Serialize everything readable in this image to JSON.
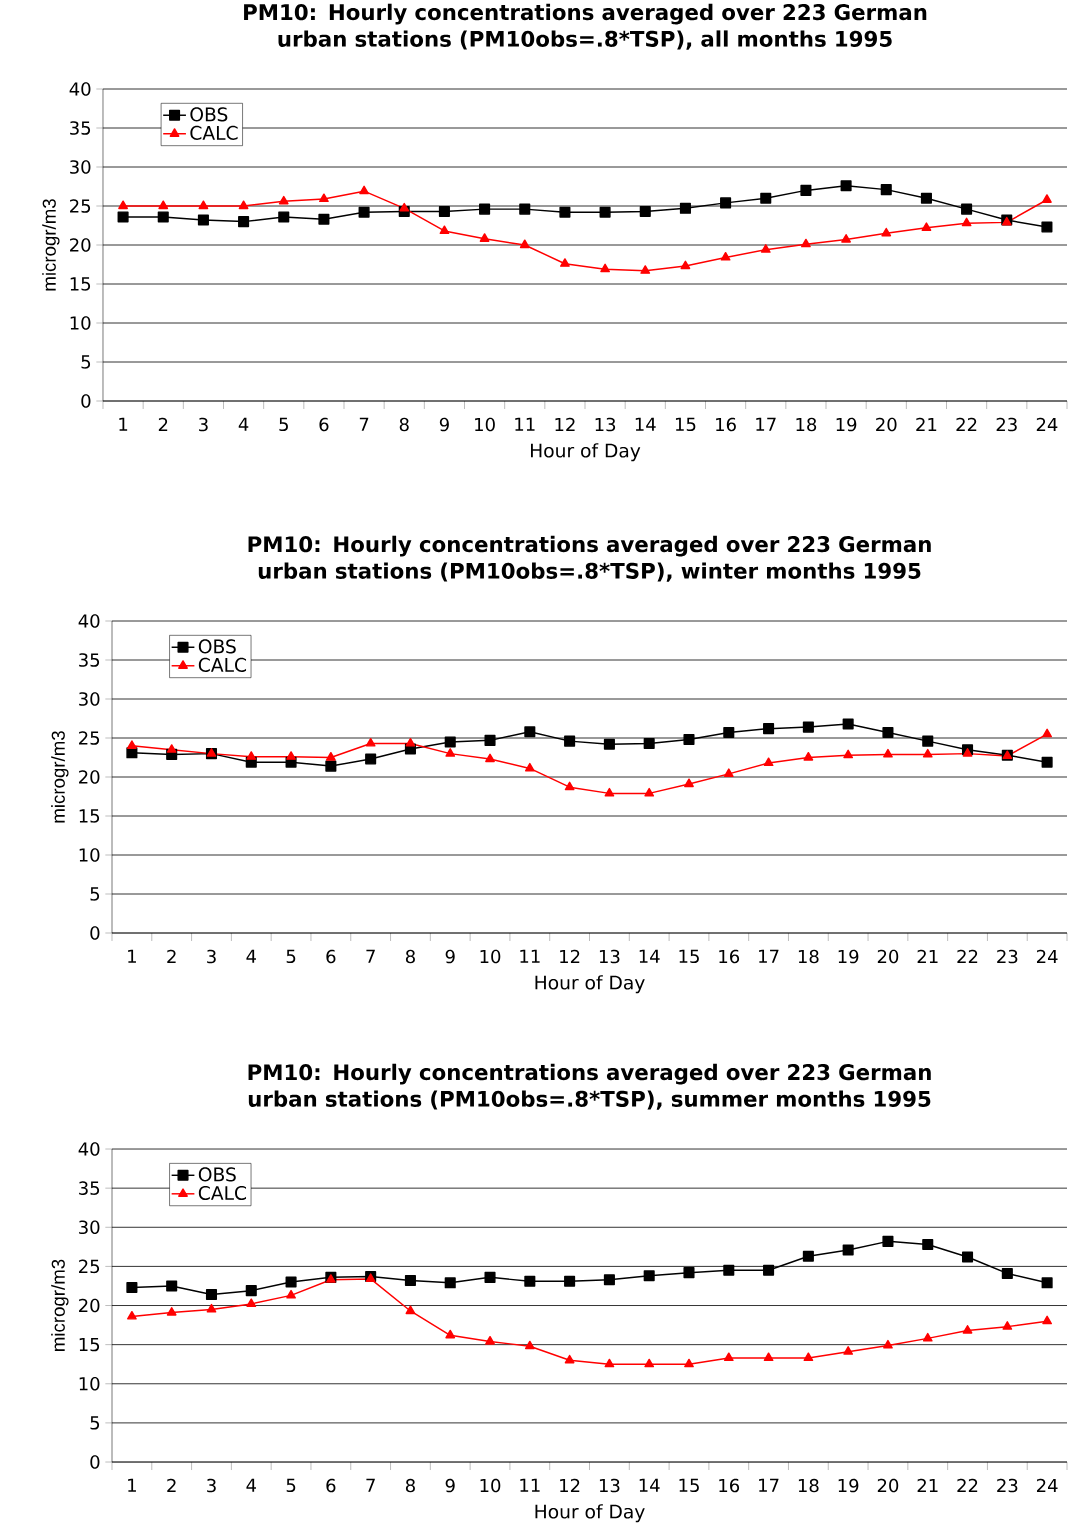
{
  "chart_data": [
    {
      "type": "line",
      "title": "PM10: Hourly concentrations averaged over 223 German urban stations (PM10obs=.8*TSP), all months 1995",
      "xlabel": "Hour of Day",
      "ylabel": "microgr/m3",
      "categories": [
        "1",
        "2",
        "3",
        "4",
        "5",
        "6",
        "7",
        "8",
        "9",
        "10",
        "11",
        "12",
        "13",
        "14",
        "15",
        "16",
        "17",
        "18",
        "19",
        "20",
        "21",
        "22",
        "23",
        "24"
      ],
      "series": [
        {
          "name": "OBS",
          "color": "#000000",
          "marker": "square",
          "values": [
            23.6,
            23.6,
            23.2,
            23.0,
            23.6,
            23.3,
            24.2,
            24.3,
            24.3,
            24.6,
            24.6,
            24.2,
            24.2,
            24.3,
            24.7,
            25.4,
            26.0,
            27.0,
            27.6,
            27.1,
            26.0,
            24.6,
            23.2,
            22.3
          ]
        },
        {
          "name": "CALC",
          "color": "#ff0000",
          "marker": "triangle",
          "values": [
            25.0,
            25.0,
            25.0,
            25.0,
            25.6,
            25.9,
            26.9,
            24.7,
            21.8,
            20.8,
            20.0,
            17.6,
            16.9,
            16.7,
            17.3,
            18.4,
            19.4,
            20.1,
            20.7,
            21.5,
            22.2,
            22.8,
            22.9,
            25.8
          ]
        }
      ],
      "ylim": [
        0,
        40
      ],
      "yticks": [
        0,
        5,
        10,
        15,
        20,
        25,
        30,
        35,
        40
      ],
      "grid": "y",
      "legend": "top left"
    },
    {
      "type": "line",
      "title": "PM10: Hourly concentrations averaged over 223 German urban stations (PM10obs=.8*TSP), winter months 1995",
      "xlabel": "Hour of Day",
      "ylabel": "microgr/m3",
      "categories": [
        "1",
        "2",
        "3",
        "4",
        "5",
        "6",
        "7",
        "8",
        "9",
        "10",
        "11",
        "12",
        "13",
        "14",
        "15",
        "16",
        "17",
        "18",
        "19",
        "20",
        "21",
        "22",
        "23",
        "24"
      ],
      "series": [
        {
          "name": "OBS",
          "color": "#000000",
          "marker": "square",
          "values": [
            23.1,
            22.9,
            23.0,
            21.9,
            21.9,
            21.4,
            22.3,
            23.6,
            24.5,
            24.7,
            25.8,
            24.6,
            24.2,
            24.3,
            24.8,
            25.7,
            26.2,
            26.4,
            26.8,
            25.7,
            24.6,
            23.5,
            22.8,
            21.9
          ]
        },
        {
          "name": "CALC",
          "color": "#ff0000",
          "marker": "triangle",
          "values": [
            24.0,
            23.5,
            23.0,
            22.6,
            22.6,
            22.5,
            24.3,
            24.3,
            23.0,
            22.3,
            21.1,
            18.7,
            17.9,
            17.9,
            19.1,
            20.4,
            21.8,
            22.5,
            22.8,
            22.9,
            22.9,
            23.0,
            22.7,
            25.5
          ]
        }
      ],
      "ylim": [
        0,
        40
      ],
      "yticks": [
        0,
        5,
        10,
        15,
        20,
        25,
        30,
        35,
        40
      ],
      "grid": "y",
      "legend": "top left"
    },
    {
      "type": "line",
      "title": "PM10: Hourly concentrations averaged over 223 German urban stations (PM10obs=.8*TSP), summer months 1995",
      "xlabel": "Hour of Day",
      "ylabel": "microgr/m3",
      "categories": [
        "1",
        "2",
        "3",
        "4",
        "5",
        "6",
        "7",
        "8",
        "9",
        "10",
        "11",
        "12",
        "13",
        "14",
        "15",
        "16",
        "17",
        "18",
        "19",
        "20",
        "21",
        "22",
        "23",
        "24"
      ],
      "series": [
        {
          "name": "OBS",
          "color": "#000000",
          "marker": "square",
          "values": [
            22.3,
            22.5,
            21.4,
            21.9,
            23.0,
            23.6,
            23.7,
            23.2,
            22.9,
            23.6,
            23.1,
            23.1,
            23.3,
            23.8,
            24.2,
            24.5,
            24.5,
            26.3,
            27.1,
            28.2,
            27.8,
            26.2,
            24.1,
            22.9
          ]
        },
        {
          "name": "CALC",
          "color": "#ff0000",
          "marker": "triangle",
          "values": [
            18.6,
            19.1,
            19.5,
            20.2,
            21.3,
            23.3,
            23.4,
            19.3,
            16.2,
            15.4,
            14.8,
            13.0,
            12.5,
            12.5,
            12.5,
            13.3,
            13.3,
            13.3,
            14.1,
            14.9,
            15.8,
            16.8,
            17.3,
            18.0
          ]
        }
      ],
      "ylim": [
        0,
        40
      ],
      "yticks": [
        0,
        5,
        10,
        15,
        20,
        25,
        30,
        35,
        40
      ],
      "grid": "y",
      "legend": "top left"
    }
  ]
}
